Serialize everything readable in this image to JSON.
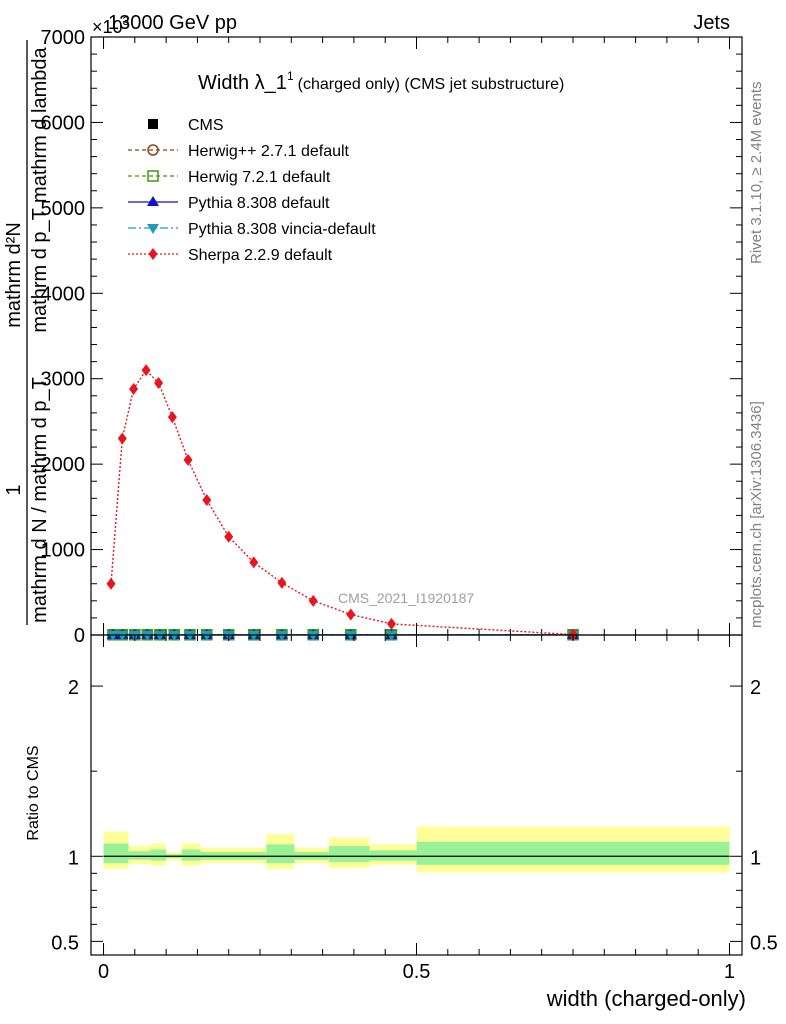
{
  "header": {
    "energy_label": "13000 GeV pp",
    "process_label": "Jets",
    "exponent_label": "×10",
    "exponent_power": "3"
  },
  "side_labels": {
    "rivet": "Rivet 3.1.10, ≥ 2.4M events",
    "mcplots": "mcplots.cern.ch [arXiv:1306.3436]"
  },
  "chart_data": {
    "type": "scatter",
    "title": "Width λ_1¹ (charged only) (CMS jet substructure)",
    "title_main": "Width λ_1",
    "title_sup": "1",
    "title_rest": "(charged only) (CMS jet substructure)",
    "ylabel_numerator": "mathrm d²N",
    "ylabel_denominator": "mathrm d p_T mathrm d lambda",
    "ylabel_prefix_num": "1",
    "ylabel_prefix_den": "mathrm d N / mathrm d p_T",
    "xlabel": "width (charged-only)",
    "ratio_ylabel": "Ratio to CMS",
    "watermark": "CMS_2021_I1920187",
    "xlim": [
      -0.02,
      1.02
    ],
    "ylim": [
      0,
      7000
    ],
    "ratio_ylim": [
      0.42,
      2.3
    ],
    "xticks": [
      "0",
      "0.5",
      "1"
    ],
    "yticks": [
      "0",
      "1000",
      "2000",
      "3000",
      "4000",
      "5000",
      "6000",
      "7000"
    ],
    "ratio_yticks": [
      "0.5",
      "1",
      "2"
    ],
    "legend": [
      "CMS",
      "Herwig++ 2.7.1 default",
      "Herwig 7.2.1 default",
      "Pythia 8.308 default",
      "Pythia 8.308 vincia-default",
      "Sherpa 2.2.9 default"
    ],
    "bins_x": [
      0.015,
      0.03,
      0.05,
      0.07,
      0.09,
      0.113,
      0.138,
      0.165,
      0.2,
      0.24,
      0.285,
      0.335,
      0.395,
      0.46,
      0.75
    ],
    "series": [
      {
        "name": "CMS",
        "color": "#000000",
        "values": [
          1.5,
          1.5,
          1.5,
          1.5,
          1.5,
          1.5,
          1.5,
          1.5,
          1.5,
          1.5,
          1.5,
          1.5,
          1.5,
          1.5,
          1.5
        ]
      },
      {
        "name": "Herwig++ 2.7.1 default",
        "color": "#8b4513",
        "values": [
          3,
          3,
          3,
          3,
          3,
          3,
          3,
          3,
          3,
          3,
          3,
          3,
          3,
          3,
          3
        ]
      },
      {
        "name": "Herwig 7.2.1 default",
        "color": "#3a9a10",
        "values": [
          3,
          3,
          3,
          3,
          3,
          3,
          3,
          3,
          3,
          3,
          3,
          3,
          3,
          3,
          3
        ]
      },
      {
        "name": "Pythia 8.308 default",
        "color": "#1010c8",
        "values": [
          2,
          2,
          2,
          2,
          2,
          2,
          2,
          2,
          2,
          2,
          2,
          2,
          2,
          2,
          2
        ]
      },
      {
        "name": "Pythia 8.308 vincia-default",
        "color": "#1a9fb5",
        "values": [
          2,
          2,
          2,
          2,
          2,
          2,
          2,
          2,
          2,
          2,
          2,
          2,
          2,
          2,
          2
        ]
      }
    ],
    "sherpa": {
      "name": "Sherpa 2.2.9 default",
      "color": "#e8141e",
      "x": [
        0.012,
        0.03,
        0.048,
        0.068,
        0.088,
        0.11,
        0.135,
        0.165,
        0.2,
        0.24,
        0.285,
        0.335,
        0.395,
        0.46,
        0.75
      ],
      "values": [
        600,
        2300,
        2880,
        3100,
        2950,
        2550,
        2050,
        1580,
        1150,
        850,
        610,
        400,
        240,
        130,
        5
      ]
    },
    "ratio_bands": [
      {
        "x0": 0.0,
        "x1": 0.04,
        "yellow": [
          0.925,
          1.145
        ],
        "green": [
          0.96,
          1.075
        ]
      },
      {
        "x0": 0.04,
        "x1": 0.075,
        "yellow": [
          0.955,
          1.06
        ],
        "green": [
          0.98,
          1.03
        ]
      },
      {
        "x0": 0.075,
        "x1": 0.1,
        "yellow": [
          0.945,
          1.075
        ],
        "green": [
          0.975,
          1.04
        ]
      },
      {
        "x0": 0.1,
        "x1": 0.125,
        "yellow": [
          0.975,
          1.025
        ],
        "green": [
          0.99,
          1.012
        ]
      },
      {
        "x0": 0.125,
        "x1": 0.155,
        "yellow": [
          0.945,
          1.075
        ],
        "green": [
          0.975,
          1.04
        ]
      },
      {
        "x0": 0.155,
        "x1": 0.26,
        "yellow": [
          0.96,
          1.05
        ],
        "green": [
          0.98,
          1.025
        ]
      },
      {
        "x0": 0.26,
        "x1": 0.305,
        "yellow": [
          0.925,
          1.13
        ],
        "green": [
          0.96,
          1.07
        ]
      },
      {
        "x0": 0.305,
        "x1": 0.36,
        "yellow": [
          0.96,
          1.05
        ],
        "green": [
          0.98,
          1.025
        ]
      },
      {
        "x0": 0.36,
        "x1": 0.425,
        "yellow": [
          0.93,
          1.11
        ],
        "green": [
          0.965,
          1.06
        ]
      },
      {
        "x0": 0.425,
        "x1": 0.5,
        "yellow": [
          0.95,
          1.07
        ],
        "green": [
          0.975,
          1.035
        ]
      },
      {
        "x0": 0.5,
        "x1": 1.0,
        "yellow": [
          0.905,
          1.175
        ],
        "green": [
          0.95,
          1.085
        ]
      }
    ]
  }
}
